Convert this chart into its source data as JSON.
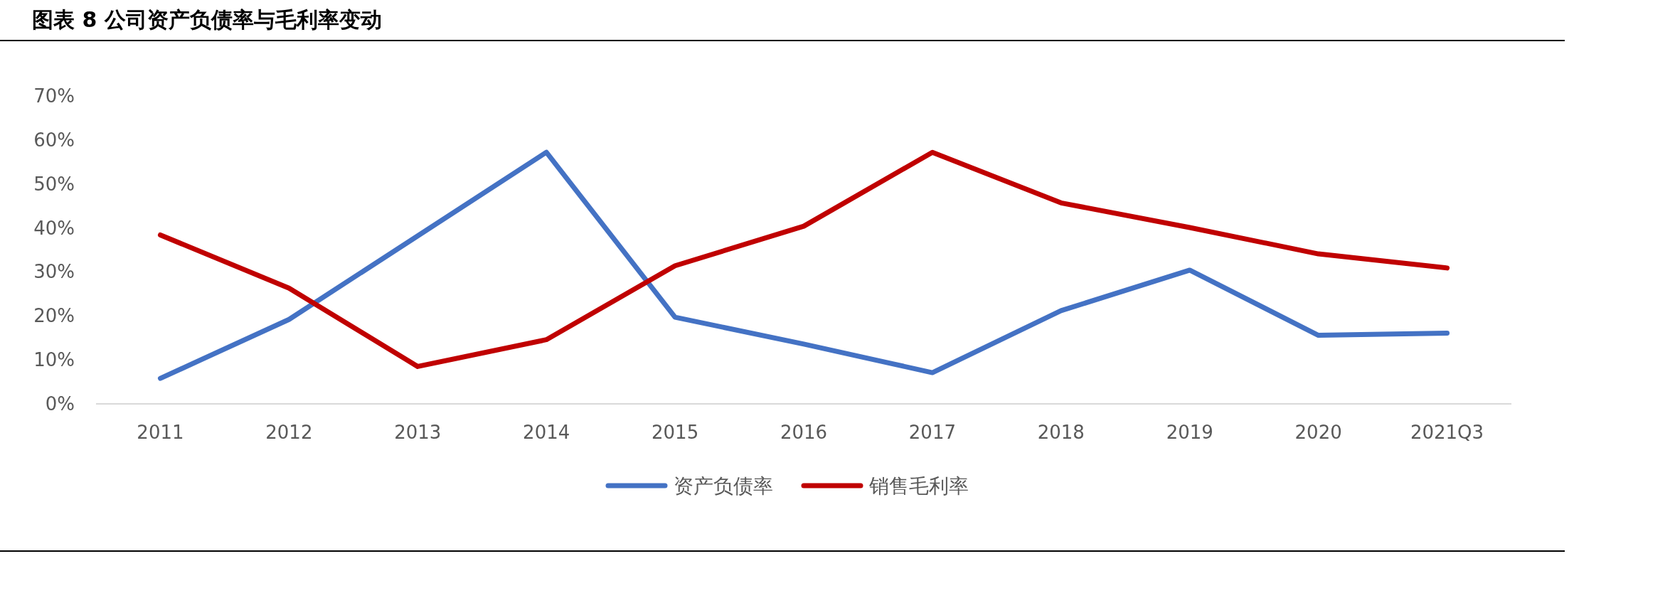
{
  "chart_data": {
    "type": "line",
    "title": "图表 8 公司资产负债率与毛利率变动",
    "categories": [
      "2011",
      "2012",
      "2013",
      "2014",
      "2015",
      "2016",
      "2017",
      "2018",
      "2019",
      "2020",
      "2021Q3"
    ],
    "series": [
      {
        "name": "资产负债率",
        "color": "#4472c4",
        "values": [
          5.8,
          19.2,
          38.2,
          57.2,
          19.7,
          13.6,
          7.1,
          21.2,
          30.4,
          15.6,
          16.1
        ]
      },
      {
        "name": "销售毛利率",
        "color": "#c00000",
        "values": [
          38.4,
          26.3,
          8.5,
          14.6,
          31.4,
          40.4,
          57.2,
          45.7,
          40.1,
          34.1,
          30.9
        ]
      }
    ],
    "ylim": [
      0,
      70
    ],
    "yticks": [
      {
        "value": 0,
        "label": "0%"
      },
      {
        "value": 10,
        "label": "10%"
      },
      {
        "value": 20,
        "label": "20%"
      },
      {
        "value": 30,
        "label": "30%"
      },
      {
        "value": 40,
        "label": "40%"
      },
      {
        "value": 50,
        "label": "50%"
      },
      {
        "value": 60,
        "label": "60%"
      },
      {
        "value": 70,
        "label": "70%"
      }
    ],
    "grid": false,
    "legend": "bottom",
    "marker": "none",
    "line_style": "solid"
  }
}
